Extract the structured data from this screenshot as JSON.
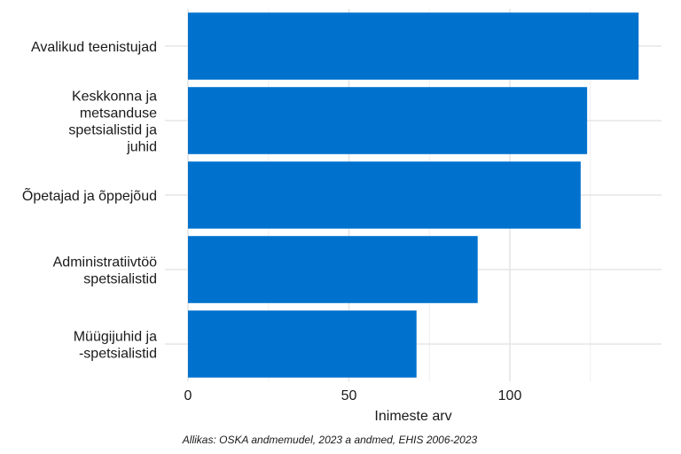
{
  "chart_data": {
    "type": "bar",
    "orientation": "horizontal",
    "categories": [
      "Avalikud teenistujad",
      "Keskkonna ja metsanduse spetsialistid ja juhid",
      "Õpetajad ja õppejõud",
      "Administratiivtöö spetsialistid",
      "Müügijuhid ja -spetsialistid"
    ],
    "category_label_lines": [
      [
        "Avalikud teenistujad"
      ],
      [
        "Keskkonna ja",
        "metsanduse",
        "spetsialistid ja",
        "juhid"
      ],
      [
        "Õpetajad ja õppejõud"
      ],
      [
        "Administratiivtöö",
        "spetsialistid"
      ],
      [
        "Müügijuhid ja",
        "-spetsialistid"
      ]
    ],
    "values": [
      140,
      124,
      122,
      90,
      71
    ],
    "xlabel": "Inimeste arv",
    "ylabel": "",
    "xlim": [
      0,
      147
    ],
    "xticks": [
      0,
      50,
      100
    ],
    "grid": true,
    "bar_color": "#0072CE",
    "caption": "Allikas: OSKA andmemudel, 2023 a andmed, EHIS 2006-2023"
  }
}
